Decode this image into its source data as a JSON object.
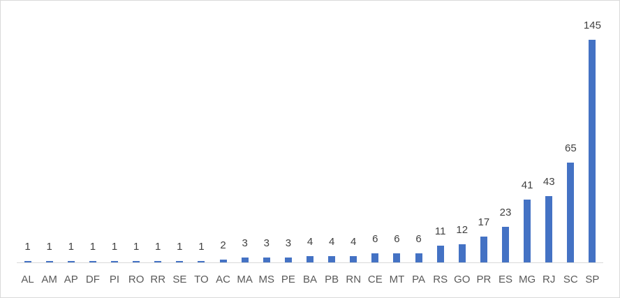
{
  "chart_data": {
    "type": "bar",
    "title": "",
    "xlabel": "",
    "ylabel": "",
    "categories": [
      "AL",
      "AM",
      "AP",
      "DF",
      "PI",
      "RO",
      "RR",
      "SE",
      "TO",
      "AC",
      "MA",
      "MS",
      "PE",
      "BA",
      "PB",
      "RN",
      "CE",
      "MT",
      "PA",
      "RS",
      "GO",
      "PR",
      "ES",
      "MG",
      "RJ",
      "SC",
      "SP"
    ],
    "values": [
      1,
      1,
      1,
      1,
      1,
      1,
      1,
      1,
      1,
      2,
      3,
      3,
      3,
      4,
      4,
      4,
      6,
      6,
      6,
      11,
      12,
      17,
      23,
      41,
      43,
      65,
      145
    ],
    "ylim": [
      0,
      145
    ],
    "grid": false,
    "legend": null,
    "data_labels": true,
    "bar_color": "#4472c4"
  }
}
